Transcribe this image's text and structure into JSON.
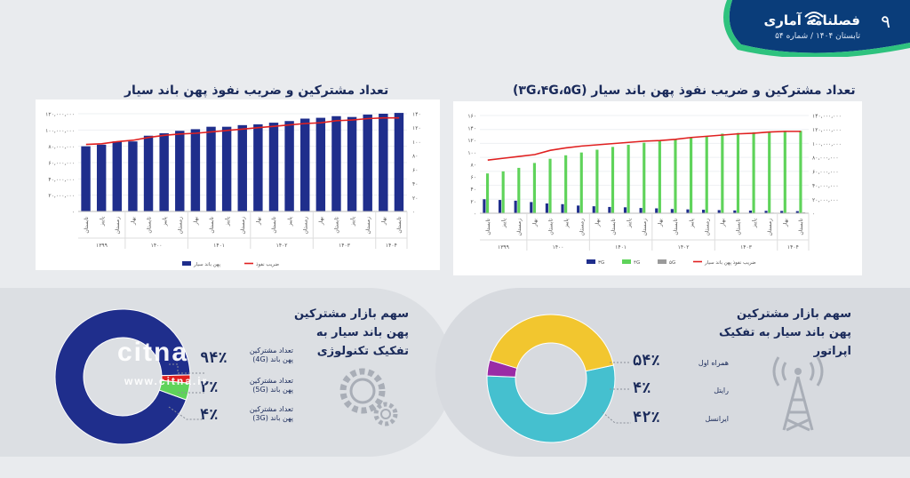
{
  "header": {
    "title": "فصلنامه آماری",
    "subtitle": "تابستان ۱۴۰۴ / شماره ۵۴",
    "page_number": "۹",
    "brand_color": "#0a3d7a",
    "accent_color": "#2ec27e"
  },
  "chart_data": [
    {
      "type": "bar",
      "title": "تعداد مشترکین و ضریب نفوذ پهن باند سیار",
      "quarters": [
        "تابستان",
        "پاییز",
        "زمستان",
        "بهار",
        "تابستان",
        "پاییز",
        "زمستان",
        "بهار",
        "تابستان",
        "پاییز",
        "زمستان",
        "بهار",
        "تابستان",
        "پاییز",
        "زمستان",
        "بهار",
        "تابستان",
        "پاییز",
        "زمستان",
        "بهار",
        "تابستان"
      ],
      "years": [
        {
          "label": "۱۳۹۹",
          "span": 3
        },
        {
          "label": "۱۴۰۰",
          "span": 4
        },
        {
          "label": "۱۴۰۱",
          "span": 4
        },
        {
          "label": "۱۴۰۲",
          "span": 4
        },
        {
          "label": "۱۴۰۳",
          "span": 4
        },
        {
          "label": "۱۴۰۴",
          "span": 2
        }
      ],
      "left_axis": {
        "ticks": [
          "۱۲۰,۰۰۰,۰۰۰",
          "۱۰۰,۰۰۰,۰۰۰",
          "۸۰,۰۰۰,۰۰۰",
          "۶۰,۰۰۰,۰۰۰",
          "۴۰,۰۰۰,۰۰۰",
          "۲۰,۰۰۰,۰۰۰",
          "۰"
        ],
        "max": 120000000
      },
      "right_axis": {
        "ticks": [
          "۱۴۰",
          "۱۲۰",
          "۱۰۰",
          "۸۰",
          "۶۰",
          "۴۰",
          "۲۰",
          "۰"
        ],
        "max": 140
      },
      "series": [
        {
          "name": "پهن باند سیار",
          "type": "bar",
          "color": "#1f2e8c",
          "values": [
            80000000,
            82000000,
            86000000,
            86000000,
            93000000,
            96000000,
            99000000,
            101000000,
            104000000,
            104000000,
            106000000,
            107000000,
            109000000,
            111000000,
            114000000,
            115000000,
            117000000,
            116000000,
            119000000,
            120000000,
            121000000
          ]
        },
        {
          "name": "ضریب نفوذ",
          "type": "line",
          "color": "#e02020",
          "values": [
            96,
            97,
            100,
            102,
            106,
            109,
            111,
            112,
            114,
            116,
            118,
            120,
            122,
            124,
            126,
            127,
            130,
            131,
            133,
            134,
            134
          ]
        }
      ],
      "legend": [
        "پهن باند سیار",
        "ضریب نفوذ"
      ]
    },
    {
      "type": "bar",
      "title": "تعداد مشترکین و ضریب نفوذ پهن باند سیار (۳G،۴G،۵G)",
      "quarters": [
        "تابستان",
        "پاییز",
        "زمستان",
        "بهار",
        "تابستان",
        "پاییز",
        "زمستان",
        "بهار",
        "تابستان",
        "پاییز",
        "زمستان",
        "بهار",
        "تابستان",
        "پاییز",
        "زمستان",
        "بهار",
        "تابستان",
        "پاییز",
        "زمستان",
        "بهار",
        "تابستان"
      ],
      "years": [
        {
          "label": "۱۳۹۹",
          "span": 3
        },
        {
          "label": "۱۴۰۰",
          "span": 4
        },
        {
          "label": "۱۴۰۱",
          "span": 4
        },
        {
          "label": "۱۴۰۲",
          "span": 4
        },
        {
          "label": "۱۴۰۳",
          "span": 4
        },
        {
          "label": "۱۴۰۴",
          "span": 2
        }
      ],
      "left_axis": {
        "ticks": [
          "۱۶۰",
          "۱۴۰",
          "۱۲۰",
          "۱۰۰",
          "۸۰",
          "۶۰",
          "۴۰",
          "۲۰",
          "۰"
        ],
        "max": 160
      },
      "right_axis": {
        "ticks": [
          "۱۴۰,۰۰۰,۰۰۰",
          "۱۲۰,۰۰۰,۰۰۰",
          "۱۰۰,۰۰۰,۰۰۰",
          "۸۰,۰۰۰,۰۰۰",
          "۶۰,۰۰۰,۰۰۰",
          "۴۰,۰۰۰,۰۰۰",
          "۲۰,۰۰۰,۰۰۰",
          "۰"
        ],
        "max": 140000000
      },
      "series": [
        {
          "name": "۳G",
          "type": "bar",
          "color": "#1f2e8c",
          "values": [
            20000000,
            19000000,
            18000000,
            16000000,
            14000000,
            13000000,
            11000000,
            10000000,
            9000000,
            8500000,
            7500000,
            7000000,
            6000000,
            5500000,
            5000000,
            4500000,
            4000000,
            3800000,
            3500000,
            3300000,
            3000000
          ]
        },
        {
          "name": "۴G",
          "type": "bar",
          "color": "#5fd35a",
          "values": [
            57000000,
            60000000,
            65000000,
            72000000,
            78000000,
            83000000,
            87000000,
            91000000,
            95000000,
            98000000,
            101000000,
            104000000,
            106000000,
            108000000,
            110000000,
            114000000,
            115000000,
            116000000,
            117000000,
            118000000,
            118000000
          ]
        },
        {
          "name": "۵G",
          "type": "bar",
          "color": "#9a9a9a",
          "values": [
            0,
            0,
            0,
            0,
            0,
            0,
            0,
            0,
            0,
            0,
            0,
            0,
            0,
            0,
            0,
            200000,
            400000,
            600000,
            800000,
            1000000,
            1200000
          ]
        },
        {
          "name": "ضریب نفوذ پهن باند سیار",
          "type": "line",
          "color": "#e02020",
          "values": [
            87,
            90,
            93,
            96,
            103,
            107,
            110,
            112,
            114,
            116,
            118,
            119,
            121,
            124,
            126,
            128,
            130,
            131,
            133,
            134,
            134
          ]
        }
      ],
      "legend": [
        "۳G",
        "۴G",
        "۵G",
        "ضریب نفوذ پهن باند سیار"
      ]
    },
    {
      "type": "pie",
      "title": "سهم بازار مشترکین پهن باند سیار به تفکیک تکنولوژی",
      "slices": [
        {
          "label": "تعداد مشترکین پهن باند (4G)",
          "value": 94,
          "display": "۹۴٪",
          "color": "#1f2e8c"
        },
        {
          "label": "تعداد مشترکین پهن باند (5G)",
          "value": 2,
          "display": "۲٪",
          "color": "#e02020"
        },
        {
          "label": "تعداد مشترکین پهن باند (3G)",
          "value": 4,
          "display": "۴٪",
          "color": "#5fd35a"
        }
      ]
    },
    {
      "type": "pie",
      "title": "سهم بازار مشترکین پهن باند سیار به تفکیک اپراتور",
      "slices": [
        {
          "label": "همراه اول",
          "value": 54,
          "display": "۵۴٪",
          "color": "#45c0cf"
        },
        {
          "label": "رایتل",
          "value": 4,
          "display": "۴٪",
          "color": "#9a2ba6"
        },
        {
          "label": "ایرانسل",
          "value": 42,
          "display": "۴۲٪",
          "color": "#f2c62f"
        }
      ]
    }
  ],
  "watermark": {
    "logo": "citna",
    "url": "www.citna.ir"
  },
  "icons": {
    "tech": "gears-icon",
    "operator": "antenna-tower-icon",
    "header": "wifi-icon"
  }
}
